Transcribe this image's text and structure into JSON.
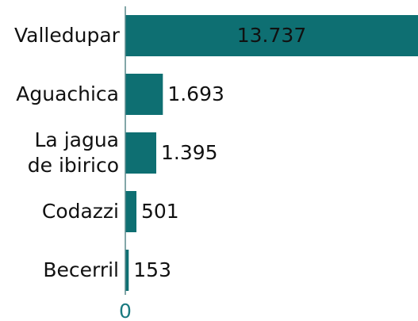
{
  "chart_data": {
    "type": "bar",
    "orientation": "horizontal",
    "categories": [
      "Valledupar",
      "Aguachica",
      "La jagua de ibirico",
      "Codazzi",
      "Becerril"
    ],
    "values": [
      13737,
      1693,
      1395,
      501,
      153
    ],
    "value_labels": [
      "13.737",
      "1.693",
      "1.395",
      "501",
      "153"
    ],
    "color": "#0e6f72",
    "xlim": [
      0,
      13200
    ],
    "xticks": [
      0
    ]
  }
}
